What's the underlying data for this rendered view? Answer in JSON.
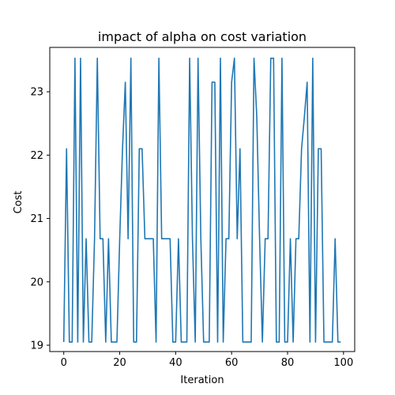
{
  "chart_data": {
    "type": "line",
    "title": "impact of alpha on cost variation",
    "xlabel": "Iteration",
    "ylabel": "Cost",
    "xlim": [
      -5,
      104
    ],
    "ylim": [
      18.9,
      23.7
    ],
    "xticks": [
      0,
      20,
      40,
      60,
      80,
      100
    ],
    "yticks": [
      19,
      20,
      21,
      22,
      23
    ],
    "grid": false,
    "line_color": "#1f77b4",
    "series": [
      {
        "x": [
          0,
          1,
          2,
          3,
          4,
          5,
          6,
          7,
          8,
          9,
          10,
          11,
          12,
          13,
          14,
          15,
          16,
          17,
          18,
          19,
          20,
          21,
          22,
          23,
          24,
          25,
          26,
          27,
          28,
          29,
          30,
          31,
          32,
          33,
          34,
          35,
          36,
          37,
          38,
          39,
          40,
          41,
          42,
          43,
          44,
          45,
          46,
          47,
          48,
          49,
          50,
          51,
          52,
          53,
          54,
          55,
          56,
          57,
          58,
          59,
          60,
          61,
          62,
          63,
          64,
          65,
          66,
          67,
          68,
          69,
          70,
          71,
          72,
          73,
          74,
          75,
          76,
          77,
          78,
          79,
          80,
          81,
          82,
          83,
          84,
          85,
          86,
          87,
          88,
          89,
          90,
          91,
          92,
          93,
          94,
          95,
          96,
          97,
          98,
          99
        ],
        "values": [
          19.05,
          22.1,
          19.05,
          19.05,
          23.53,
          19.05,
          23.53,
          19.05,
          20.68,
          19.05,
          19.05,
          20.68,
          23.53,
          20.68,
          20.68,
          19.05,
          20.68,
          19.05,
          19.05,
          19.05,
          20.68,
          22.1,
          23.15,
          20.68,
          23.53,
          19.05,
          19.05,
          22.1,
          22.1,
          20.68,
          20.68,
          20.68,
          20.68,
          19.05,
          23.53,
          20.68,
          20.68,
          20.68,
          20.68,
          19.05,
          19.05,
          20.68,
          19.05,
          19.05,
          19.05,
          23.53,
          20.68,
          19.05,
          23.53,
          20.68,
          19.05,
          19.05,
          19.05,
          23.15,
          23.15,
          19.05,
          23.53,
          19.05,
          20.68,
          20.68,
          23.15,
          23.53,
          20.68,
          22.1,
          19.05,
          19.05,
          19.05,
          19.05,
          23.53,
          22.6,
          20.68,
          19.05,
          20.68,
          20.68,
          23.53,
          23.53,
          19.05,
          19.05,
          23.53,
          19.05,
          19.05,
          20.68,
          19.05,
          20.68,
          20.68,
          22.1,
          22.6,
          23.15,
          19.05,
          23.53,
          19.05,
          22.1,
          22.1,
          19.05,
          19.05,
          19.05,
          19.05,
          20.68,
          19.05,
          19.05
        ]
      }
    ]
  }
}
